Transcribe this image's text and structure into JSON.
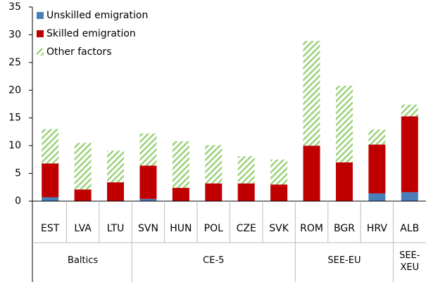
{
  "chart_data": {
    "type": "stacked_bar",
    "categories": [
      "EST",
      "LVA",
      "LTU",
      "SVN",
      "HUN",
      "POL",
      "CZE",
      "SVK",
      "ROM",
      "BGR",
      "HRV",
      "ALB"
    ],
    "groups": [
      {
        "label": "Baltics",
        "size": 3
      },
      {
        "label": "CE-5",
        "size": 5
      },
      {
        "label": "SEE-EU",
        "size": 3
      },
      {
        "label": "SEE-XEU",
        "size": 1
      }
    ],
    "series": [
      {
        "name": "Unskilled emigration",
        "color": "#4a7ebb",
        "values": [
          0.7,
          0,
          0,
          0.4,
          0,
          0,
          0,
          0,
          0,
          0,
          1.4,
          1.6
        ]
      },
      {
        "name": "Skilled emigration",
        "color": "#c00000",
        "values": [
          6.1,
          2.1,
          3.4,
          6.0,
          2.4,
          3.2,
          3.2,
          3.0,
          10.0,
          7.0,
          8.8,
          13.7
        ]
      },
      {
        "name": "Other factors",
        "color": "#9bd27a",
        "hatch": true,
        "values": [
          6.2,
          8.4,
          5.7,
          5.8,
          8.4,
          6.9,
          4.9,
          4.5,
          18.9,
          13.8,
          2.7,
          2.1
        ]
      }
    ],
    "ylim": [
      0,
      35
    ],
    "yticks": [
      0,
      5,
      10,
      15,
      20,
      25,
      30,
      35
    ],
    "legend": "top-left"
  }
}
